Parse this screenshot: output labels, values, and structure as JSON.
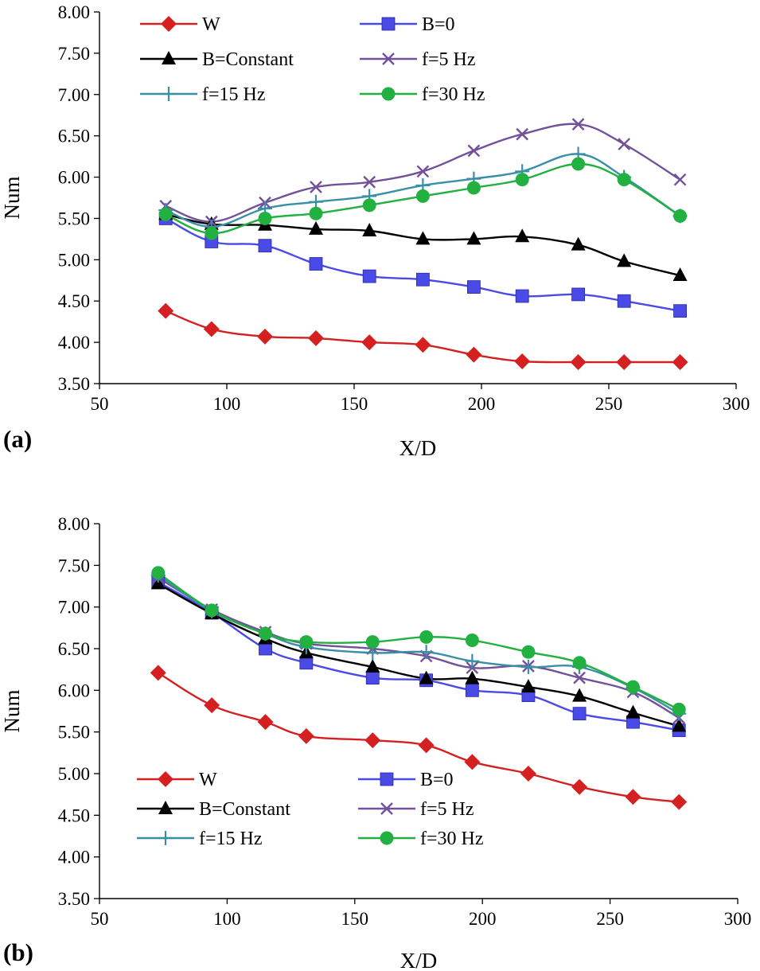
{
  "chart_data": [
    {
      "type": "line",
      "panel_label": "(a)",
      "xlabel": "X/D",
      "ylabel": "Num",
      "xlim": [
        50,
        300
      ],
      "ylim": [
        3.5,
        8.0
      ],
      "x_ticks": [
        50,
        100,
        150,
        200,
        250,
        300
      ],
      "x_tick_labels": [
        "50",
        "100",
        "150",
        "200",
        "250",
        "300"
      ],
      "y_ticks": [
        3.5,
        4.0,
        4.5,
        5.0,
        5.5,
        6.0,
        6.5,
        7.0,
        7.5,
        8.0
      ],
      "y_tick_labels": [
        "3.50",
        "4.00",
        "4.50",
        "5.00",
        "5.50",
        "6.00",
        "6.50",
        "7.00",
        "7.50",
        "8.00"
      ],
      "grid": false,
      "legend_position": "top",
      "x": [
        76,
        94,
        115,
        135,
        156,
        177,
        197,
        216,
        238,
        256,
        278
      ],
      "series": [
        {
          "name": "W",
          "color": "#d42020",
          "marker": "diamond",
          "values": [
            4.38,
            4.16,
            4.07,
            4.05,
            4.0,
            3.97,
            3.85,
            3.77,
            3.76,
            3.76,
            3.76
          ]
        },
        {
          "name": "B=0",
          "color": "#4a4ae6",
          "marker": "square",
          "values": [
            5.5,
            5.22,
            5.17,
            4.95,
            4.8,
            4.76,
            4.67,
            4.56,
            4.58,
            4.5,
            4.38
          ]
        },
        {
          "name": "B=Constant",
          "color": "#000000",
          "marker": "triangle",
          "values": [
            5.55,
            5.43,
            5.42,
            5.37,
            5.35,
            5.25,
            5.25,
            5.28,
            5.18,
            4.98,
            4.81
          ]
        },
        {
          "name": "f=5 Hz",
          "color": "#72509a",
          "marker": "x",
          "values": [
            5.65,
            5.46,
            5.69,
            5.88,
            5.94,
            6.07,
            6.32,
            6.52,
            6.64,
            6.4,
            5.97
          ]
        },
        {
          "name": "f=15 Hz",
          "color": "#3a8fa8",
          "marker": "plus",
          "values": [
            5.6,
            5.4,
            5.62,
            5.7,
            5.77,
            5.9,
            5.98,
            6.07,
            6.28,
            6.0,
            5.53
          ]
        },
        {
          "name": "f=30 Hz",
          "color": "#22b040",
          "marker": "circle",
          "values": [
            5.55,
            5.32,
            5.5,
            5.56,
            5.66,
            5.77,
            5.87,
            5.97,
            6.16,
            5.97,
            5.53
          ]
        }
      ]
    },
    {
      "type": "line",
      "panel_label": "(b)",
      "xlabel": "X/D",
      "ylabel": "Num",
      "xlim": [
        50,
        300
      ],
      "ylim": [
        3.5,
        8.0
      ],
      "x_ticks": [
        50,
        100,
        150,
        200,
        250,
        300
      ],
      "x_tick_labels": [
        "50",
        "100",
        "150",
        "200",
        "250",
        "300"
      ],
      "y_ticks": [
        3.5,
        4.0,
        4.5,
        5.0,
        5.5,
        6.0,
        6.5,
        7.0,
        7.5,
        8.0
      ],
      "y_tick_labels": [
        "3.50",
        "4.00",
        "4.50",
        "5.00",
        "5.50",
        "6.00",
        "6.50",
        "7.00",
        "7.50",
        "8.00"
      ],
      "grid": false,
      "legend_position": "bottom",
      "x": [
        73,
        94,
        115,
        131,
        157,
        178,
        196,
        218,
        238,
        259,
        277
      ],
      "series": [
        {
          "name": "W",
          "color": "#d42020",
          "marker": "diamond",
          "values": [
            6.21,
            5.82,
            5.62,
            5.45,
            5.4,
            5.34,
            5.14,
            5.0,
            4.84,
            4.72,
            4.66
          ]
        },
        {
          "name": "B=0",
          "color": "#4a4ae6",
          "marker": "square",
          "values": [
            7.3,
            6.93,
            6.5,
            6.33,
            6.15,
            6.12,
            6.0,
            5.94,
            5.72,
            5.62,
            5.52
          ]
        },
        {
          "name": "B=Constant",
          "color": "#000000",
          "marker": "triangle",
          "values": [
            7.28,
            6.92,
            6.62,
            6.45,
            6.28,
            6.14,
            6.14,
            6.04,
            5.93,
            5.73,
            5.57
          ]
        },
        {
          "name": "f=5 Hz",
          "color": "#72509a",
          "marker": "x",
          "values": [
            7.35,
            6.97,
            6.7,
            6.56,
            6.5,
            6.41,
            6.27,
            6.29,
            6.15,
            5.98,
            5.67
          ]
        },
        {
          "name": "f=15 Hz",
          "color": "#3a8fa8",
          "marker": "plus",
          "values": [
            7.38,
            6.95,
            6.68,
            6.52,
            6.45,
            6.46,
            6.35,
            6.28,
            6.28,
            6.03,
            5.72
          ]
        },
        {
          "name": "f=30 Hz",
          "color": "#22b040",
          "marker": "circle",
          "values": [
            7.41,
            6.96,
            6.68,
            6.58,
            6.58,
            6.64,
            6.6,
            6.46,
            6.33,
            6.04,
            5.77
          ]
        }
      ]
    }
  ]
}
